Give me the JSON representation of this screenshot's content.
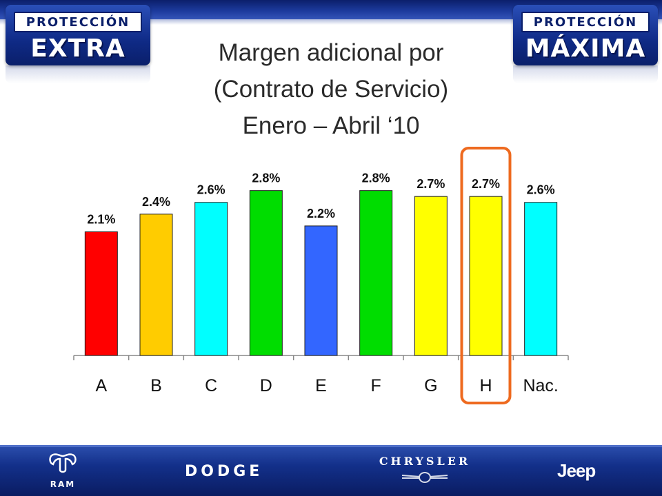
{
  "header": {
    "logo_left": {
      "top_text": "PROTECCIÓN",
      "big_text": "EXTRA"
    },
    "logo_right": {
      "top_text": "PROTECCIÓN",
      "big_text": "MÁXIMA"
    },
    "title_lines": [
      "Margen adicional por",
      "(Contrato de Servicio)",
      "Enero – Abril ‘10"
    ]
  },
  "chart_data": {
    "type": "bar",
    "categories": [
      "A",
      "B",
      "C",
      "D",
      "E",
      "F",
      "G",
      "H",
      "Nac."
    ],
    "values": [
      2.1,
      2.4,
      2.6,
      2.8,
      2.2,
      2.8,
      2.7,
      2.7,
      2.6
    ],
    "value_labels": [
      "2.1%",
      "2.4%",
      "2.6%",
      "2.8%",
      "2.2%",
      "2.8%",
      "2.7%",
      "2.7%",
      "2.6%"
    ],
    "bar_colors": [
      "#ff0000",
      "#ffcc00",
      "#00ffff",
      "#00dd00",
      "#3366ff",
      "#00dd00",
      "#ffff00",
      "#ffff00",
      "#00ffff"
    ],
    "highlight_category": "H",
    "highlight_color": "#ee6a1f",
    "ylim": [
      0,
      3.1
    ],
    "grid": false,
    "legend": "none"
  },
  "footer": {
    "brands": [
      "RAM",
      "DODGE",
      "CHRYSLER",
      "Jeep"
    ],
    "icons": [
      "ram-head-icon",
      "chrysler-wings-icon"
    ]
  }
}
